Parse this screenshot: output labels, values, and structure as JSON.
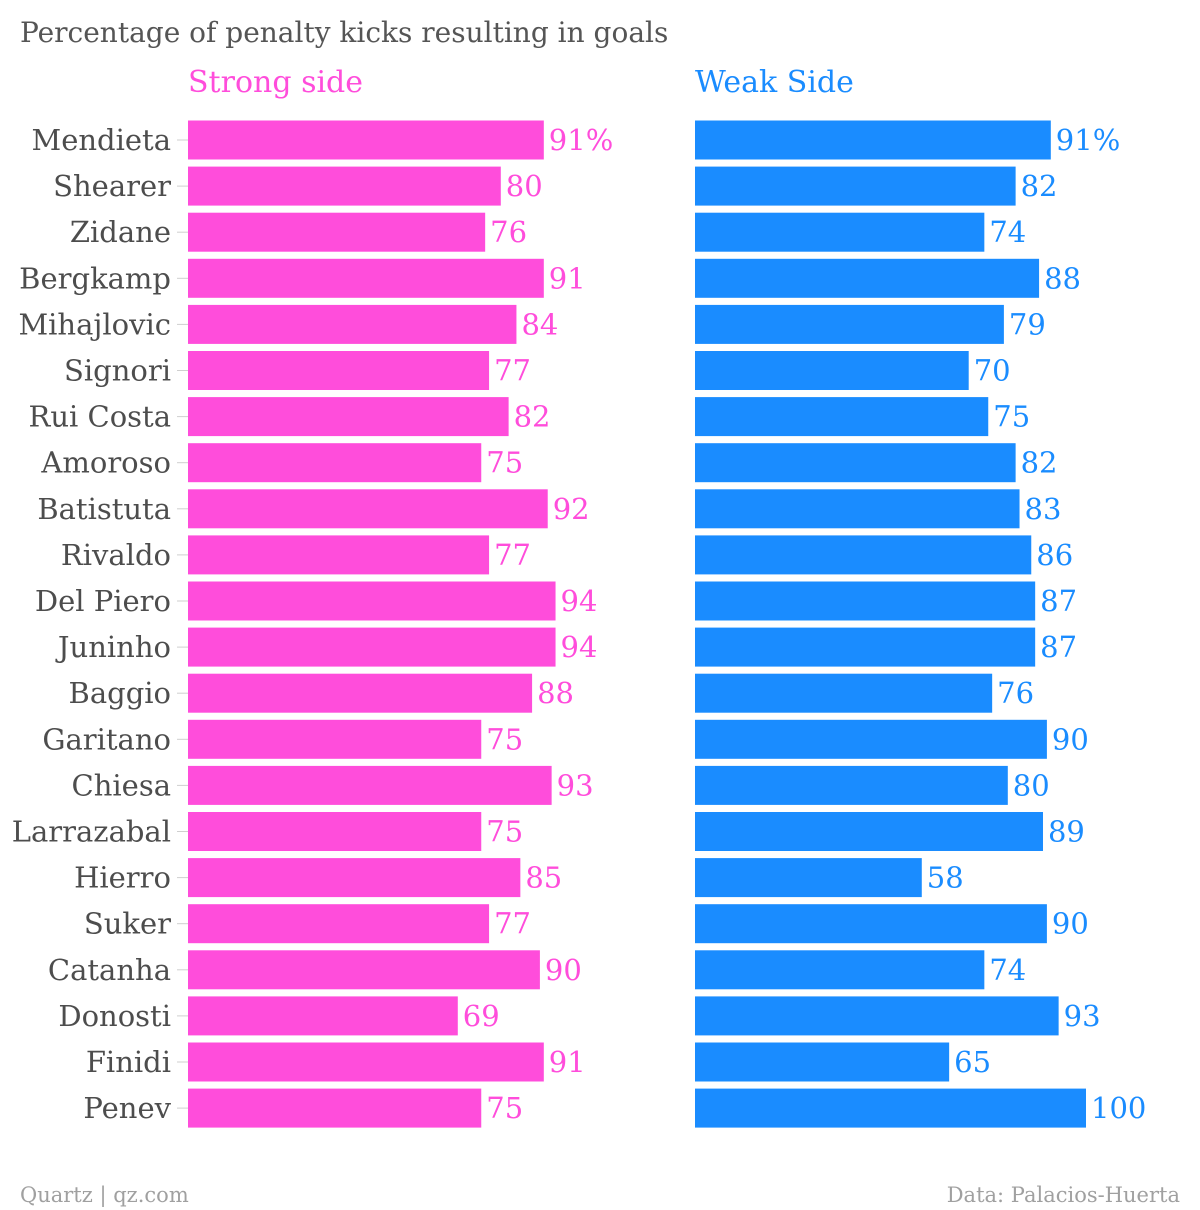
{
  "chart_data": {
    "type": "bar",
    "title": "Percentage of penalty kicks resulting in goals",
    "xlim": [
      0,
      100
    ],
    "categories": [
      "Mendieta",
      "Shearer",
      "Zidane",
      "Bergkamp",
      "Mihajlovic",
      "Signori",
      "Rui Costa",
      "Amoroso",
      "Batistuta",
      "Rivaldo",
      "Del Piero",
      "Juninho",
      "Baggio",
      "Garitano",
      "Chiesa",
      "Larrazabal",
      "Hierro",
      "Suker",
      "Catanha",
      "Donosti",
      "Finidi",
      "Penev"
    ],
    "series": [
      {
        "name": "Strong side",
        "color": "#ff4ddb",
        "values": [
          91,
          80,
          76,
          91,
          84,
          77,
          82,
          75,
          92,
          77,
          94,
          94,
          88,
          75,
          93,
          75,
          85,
          77,
          90,
          69,
          91,
          75
        ],
        "value_labels": [
          "91%",
          "80",
          "76",
          "91",
          "84",
          "77",
          "82",
          "75",
          "92",
          "77",
          "94",
          "94",
          "88",
          "75",
          "93",
          "75",
          "85",
          "77",
          "90",
          "69",
          "91",
          "75"
        ]
      },
      {
        "name": "Weak Side",
        "color": "#1a8cff",
        "values": [
          91,
          82,
          74,
          88,
          79,
          70,
          75,
          82,
          83,
          86,
          87,
          87,
          76,
          90,
          80,
          89,
          58,
          90,
          74,
          93,
          65,
          100
        ],
        "value_labels": [
          "91%",
          "82",
          "74",
          "88",
          "79",
          "70",
          "75",
          "82",
          "83",
          "86",
          "87",
          "87",
          "76",
          "90",
          "80",
          "89",
          "58",
          "90",
          "74",
          "93",
          "65",
          "100"
        ]
      }
    ],
    "grid": false,
    "legend": "none"
  },
  "footer": {
    "source_left": "Quartz | qz.com",
    "source_right": "Data: Palacios-Huerta"
  }
}
